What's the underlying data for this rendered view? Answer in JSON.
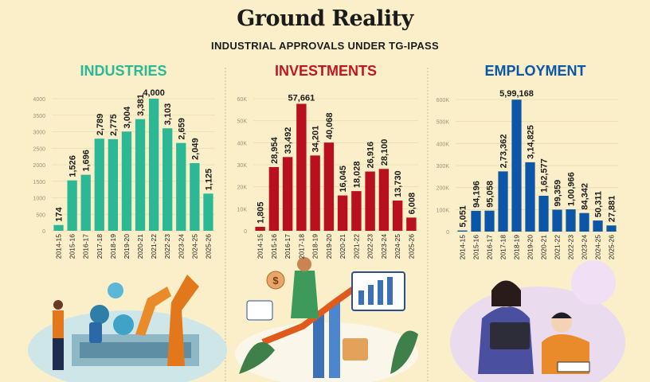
{
  "header": {
    "title": "Ground Reality",
    "subtitle": "INDUSTRIAL APPROVALS UNDER TG-IPASS"
  },
  "chart_data": [
    {
      "type": "bar",
      "title": "INDUSTRIES",
      "color": "#2cb895",
      "title_color": "#2cb895",
      "categories": [
        "2014-15",
        "2015-16",
        "2016-17",
        "2017-18",
        "2018-19",
        "2019-20",
        "2020-21",
        "2021-22",
        "2022-23",
        "2023-24",
        "2024-25",
        "2025-26"
      ],
      "values": [
        174,
        1526,
        1696,
        2789,
        2775,
        3004,
        3381,
        4000,
        3103,
        2659,
        2049,
        1125
      ],
      "value_labels": [
        "174",
        "1,526",
        "1,696",
        "2,789",
        "2,775",
        "3,004",
        "3,381",
        "4,000",
        "3,103",
        "2,659",
        "2,049",
        "1,125"
      ],
      "yticks": [
        0,
        500,
        1000,
        1500,
        2000,
        2500,
        3000,
        3500,
        4000
      ],
      "ytick_labels": [
        "0",
        "500",
        "1000",
        "1500",
        "2000",
        "2500",
        "3000",
        "3500",
        "4000"
      ],
      "ylim": [
        0,
        4000
      ],
      "grid": true
    },
    {
      "type": "bar",
      "title": "INVESTMENTS",
      "color": "#b8111d",
      "title_color": "#c0161f",
      "categories": [
        "2014-15",
        "2015-16",
        "2016-17",
        "2017-18",
        "2018-19",
        "2019-20",
        "2020-21",
        "2021-22",
        "2022-23",
        "2023-24",
        "2024-25",
        "2025-26"
      ],
      "values": [
        1805,
        28954,
        33492,
        57661,
        34201,
        40068,
        16045,
        18028,
        26916,
        28100,
        13730,
        6008
      ],
      "value_labels": [
        "1,805",
        "28,954",
        "33,492",
        "57,661",
        "34,201",
        "40,068",
        "16,045",
        "18,028",
        "26,916",
        "28,100",
        "13,730",
        "6,008"
      ],
      "yticks": [
        0,
        10000,
        20000,
        30000,
        40000,
        50000,
        60000
      ],
      "ytick_labels": [
        "0",
        "10K",
        "20K",
        "30K",
        "40K",
        "50K",
        "60K"
      ],
      "ylim": [
        0,
        60000
      ],
      "grid": true
    },
    {
      "type": "bar",
      "title": "EMPLOYMENT",
      "color": "#0c56a7",
      "title_color": "#0a56a8",
      "categories": [
        "2014-15",
        "2015-16",
        "2016-17",
        "2017-18",
        "2018-19",
        "2019-20",
        "2020-21",
        "2021-22",
        "2022-23",
        "2023-24",
        "2024-25",
        "2025-26"
      ],
      "values": [
        5051,
        94196,
        95058,
        273362,
        599168,
        314825,
        162577,
        99359,
        100966,
        84342,
        50311,
        27881
      ],
      "value_labels": [
        "5,051",
        "94,196",
        "95,058",
        "2,73,362",
        "5,99,168",
        "3,14,825",
        "1,62,577",
        "99,359",
        "1,00,966",
        "84,342",
        "50,311",
        "27,881"
      ],
      "yticks": [
        0,
        100000,
        200000,
        300000,
        400000,
        500000,
        600000
      ],
      "ytick_labels": [
        "0",
        "100K",
        "200K",
        "300K",
        "400K",
        "500K",
        "600K"
      ],
      "ylim": [
        0,
        600000
      ],
      "grid": true
    }
  ]
}
